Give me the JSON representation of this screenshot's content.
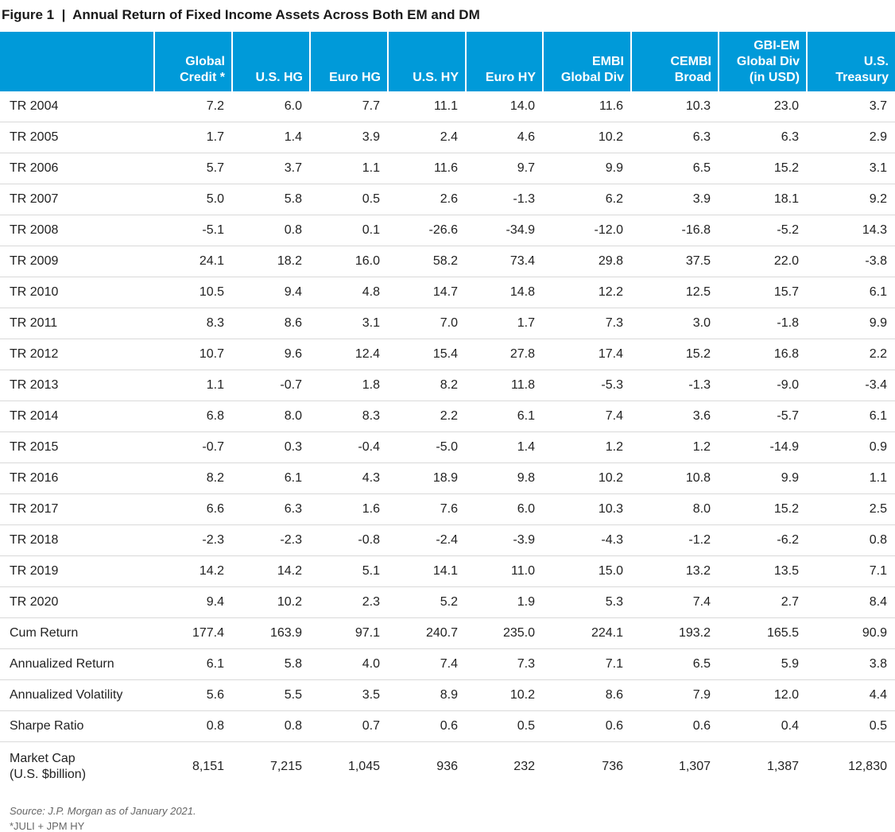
{
  "title": "Figure 1  |  Annual Return of Fixed Income Assets Across Both EM and DM",
  "colors": {
    "header_bg": "#009ad9",
    "header_text": "#ffffff",
    "rule": "#d9d9d9"
  },
  "columns": [
    "",
    "Global\nCredit *",
    "U.S. HG",
    "Euro HG",
    "U.S. HY",
    "Euro HY",
    "EMBI\nGlobal Div",
    "CEMBI\nBroad",
    "GBI-EM\nGlobal Div\n(in USD)",
    "U.S.\nTreasury"
  ],
  "rows": [
    [
      "TR 2004",
      "7.2",
      "6.0",
      "7.7",
      "11.1",
      "14.0",
      "11.6",
      "10.3",
      "23.0",
      "3.7"
    ],
    [
      "TR 2005",
      "1.7",
      "1.4",
      "3.9",
      "2.4",
      "4.6",
      "10.2",
      "6.3",
      "6.3",
      "2.9"
    ],
    [
      "TR 2006",
      "5.7",
      "3.7",
      "1.1",
      "11.6",
      "9.7",
      "9.9",
      "6.5",
      "15.2",
      "3.1"
    ],
    [
      "TR 2007",
      "5.0",
      "5.8",
      "0.5",
      "2.6",
      "-1.3",
      "6.2",
      "3.9",
      "18.1",
      "9.2"
    ],
    [
      "TR 2008",
      "-5.1",
      "0.8",
      "0.1",
      "-26.6",
      "-34.9",
      "-12.0",
      "-16.8",
      "-5.2",
      "14.3"
    ],
    [
      "TR 2009",
      "24.1",
      "18.2",
      "16.0",
      "58.2",
      "73.4",
      "29.8",
      "37.5",
      "22.0",
      "-3.8"
    ],
    [
      "TR 2010",
      "10.5",
      "9.4",
      "4.8",
      "14.7",
      "14.8",
      "12.2",
      "12.5",
      "15.7",
      "6.1"
    ],
    [
      "TR 2011",
      "8.3",
      "8.6",
      "3.1",
      "7.0",
      "1.7",
      "7.3",
      "3.0",
      "-1.8",
      "9.9"
    ],
    [
      "TR 2012",
      "10.7",
      "9.6",
      "12.4",
      "15.4",
      "27.8",
      "17.4",
      "15.2",
      "16.8",
      "2.2"
    ],
    [
      "TR 2013",
      "1.1",
      "-0.7",
      "1.8",
      "8.2",
      "11.8",
      "-5.3",
      "-1.3",
      "-9.0",
      "-3.4"
    ],
    [
      "TR 2014",
      "6.8",
      "8.0",
      "8.3",
      "2.2",
      "6.1",
      "7.4",
      "3.6",
      "-5.7",
      "6.1"
    ],
    [
      "TR 2015",
      "-0.7",
      "0.3",
      "-0.4",
      "-5.0",
      "1.4",
      "1.2",
      "1.2",
      "-14.9",
      "0.9"
    ],
    [
      "TR 2016",
      "8.2",
      "6.1",
      "4.3",
      "18.9",
      "9.8",
      "10.2",
      "10.8",
      "9.9",
      "1.1"
    ],
    [
      "TR 2017",
      "6.6",
      "6.3",
      "1.6",
      "7.6",
      "6.0",
      "10.3",
      "8.0",
      "15.2",
      "2.5"
    ],
    [
      "TR 2018",
      "-2.3",
      "-2.3",
      "-0.8",
      "-2.4",
      "-3.9",
      "-4.3",
      "-1.2",
      "-6.2",
      "0.8"
    ],
    [
      "TR 2019",
      "14.2",
      "14.2",
      "5.1",
      "14.1",
      "11.0",
      "15.0",
      "13.2",
      "13.5",
      "7.1"
    ],
    [
      "TR 2020",
      "9.4",
      "10.2",
      "2.3",
      "5.2",
      "1.9",
      "5.3",
      "7.4",
      "2.7",
      "8.4"
    ],
    [
      "Cum Return",
      "177.4",
      "163.9",
      "97.1",
      "240.7",
      "235.0",
      "224.1",
      "193.2",
      "165.5",
      "90.9"
    ],
    [
      "Annualized Return",
      "6.1",
      "5.8",
      "4.0",
      "7.4",
      "7.3",
      "7.1",
      "6.5",
      "5.9",
      "3.8"
    ],
    [
      "Annualized Volatility",
      "5.6",
      "5.5",
      "3.5",
      "8.9",
      "10.2",
      "8.6",
      "7.9",
      "12.0",
      "4.4"
    ],
    [
      "Sharpe Ratio",
      "0.8",
      "0.8",
      "0.7",
      "0.6",
      "0.5",
      "0.6",
      "0.6",
      "0.4",
      "0.5"
    ],
    [
      "Market Cap\n(U.S. $billion)",
      "8,151",
      "7,215",
      "1,045",
      "936",
      "232",
      "736",
      "1,307",
      "1,387",
      "12,830"
    ]
  ],
  "source": "Source: J.P. Morgan as of January 2021.",
  "footnote": "*JULI + JPM HY"
}
